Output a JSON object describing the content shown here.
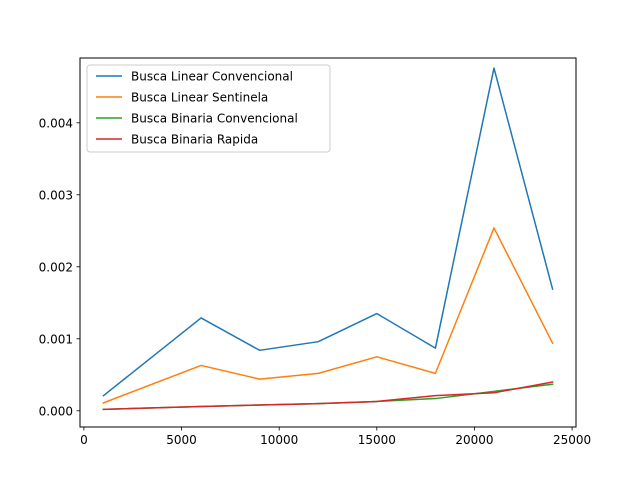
{
  "chart_data": {
    "type": "line",
    "title": "",
    "xlabel": "",
    "ylabel": "",
    "xlim": [
      -200,
      25200
    ],
    "ylim": [
      -0.000225,
      0.0049
    ],
    "grid": false,
    "legend_position": "top-left",
    "x_ticks": [
      0,
      5000,
      10000,
      15000,
      20000,
      25000
    ],
    "x_tick_labels": [
      "0",
      "5000",
      "10000",
      "15000",
      "20000",
      "25000"
    ],
    "y_ticks": [
      0.0,
      0.001,
      0.002,
      0.003,
      0.004
    ],
    "y_tick_labels": [
      "0.000",
      "0.001",
      "0.002",
      "0.003",
      "0.004"
    ],
    "x": [
      1000,
      6000,
      9000,
      12000,
      15000,
      18000,
      21000,
      24000
    ],
    "series": [
      {
        "name": "Busca Linear Convencional",
        "color": "#1f77b4",
        "values": [
          0.00021,
          0.00129,
          0.00084,
          0.00096,
          0.00135,
          0.00087,
          0.00476,
          0.00169
        ]
      },
      {
        "name": "Busca Linear Sentinela",
        "color": "#ff7f0e",
        "values": [
          0.00011,
          0.00063,
          0.00044,
          0.00052,
          0.00075,
          0.00052,
          0.00254,
          0.00094
        ]
      },
      {
        "name": "Busca Binaria Convencional",
        "color": "#2ca02c",
        "values": [
          2e-05,
          6e-05,
          8e-05,
          0.0001,
          0.00013,
          0.00017,
          0.00027,
          0.00037
        ]
      },
      {
        "name": "Busca Binaria Rapida",
        "color": "#d62728",
        "values": [
          2e-05,
          6e-05,
          8e-05,
          0.0001,
          0.00013,
          0.00021,
          0.00025,
          0.0004
        ]
      }
    ]
  }
}
